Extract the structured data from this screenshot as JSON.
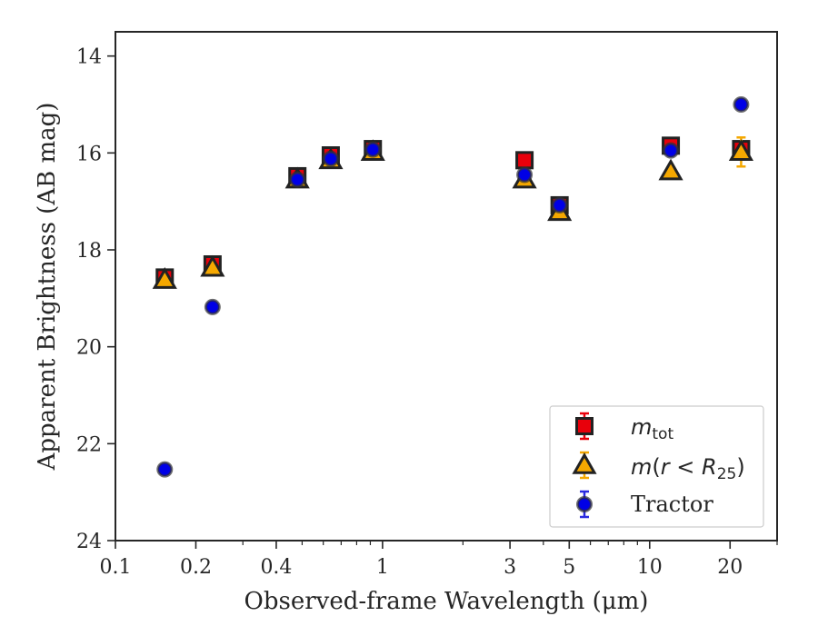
{
  "chart_data": {
    "type": "scatter",
    "xscale": "log",
    "xlim": [
      0.1,
      30
    ],
    "ylim": [
      24,
      13.5
    ],
    "y_inverted": true,
    "xlabel": "Observed-frame Wavelength (μm)",
    "ylabel": "Apparent Brightness (AB mag)",
    "xticks": [
      {
        "value": 0.1,
        "label": "0.1"
      },
      {
        "value": 0.2,
        "label": "0.2"
      },
      {
        "value": 0.4,
        "label": "0.4"
      },
      {
        "value": 1,
        "label": "1"
      },
      {
        "value": 3,
        "label": "3"
      },
      {
        "value": 5,
        "label": "5"
      },
      {
        "value": 10,
        "label": "10"
      },
      {
        "value": 20,
        "label": "20"
      }
    ],
    "yticks": [
      {
        "value": 14,
        "label": "14"
      },
      {
        "value": 16,
        "label": "16"
      },
      {
        "value": 18,
        "label": "18"
      },
      {
        "value": 20,
        "label": "20"
      },
      {
        "value": 22,
        "label": "22"
      },
      {
        "value": 24,
        "label": "24"
      }
    ],
    "legend_position": "lower-right",
    "series": [
      {
        "name": "m_tot",
        "marker": "square",
        "color": "#e8000b",
        "errcolor": "#e8000b",
        "points": [
          {
            "x": 0.153,
            "y": 18.57,
            "err": 0.12
          },
          {
            "x": 0.231,
            "y": 18.3,
            "err": 0.12
          },
          {
            "x": 0.48,
            "y": 16.48,
            "err": 0.1
          },
          {
            "x": 0.64,
            "y": 16.05,
            "err": 0.1
          },
          {
            "x": 0.92,
            "y": 15.92,
            "err": 0.05
          },
          {
            "x": 3.4,
            "y": 16.15,
            "err": 0.05
          },
          {
            "x": 4.6,
            "y": 17.08,
            "err": 0.05
          },
          {
            "x": 12.0,
            "y": 15.85,
            "err": 0.08
          },
          {
            "x": 22.0,
            "y": 15.92,
            "err": 0.15
          }
        ]
      },
      {
        "name": "m(r<R25)",
        "marker": "triangle",
        "color": "#f5a800",
        "errcolor": "#f5a800",
        "points": [
          {
            "x": 0.153,
            "y": 18.62,
            "err": 0.05
          },
          {
            "x": 0.231,
            "y": 18.37,
            "err": 0.05
          },
          {
            "x": 0.48,
            "y": 16.55,
            "err": 0.05
          },
          {
            "x": 0.64,
            "y": 16.15,
            "err": 0.05
          },
          {
            "x": 0.92,
            "y": 15.98,
            "err": 0.05
          },
          {
            "x": 3.4,
            "y": 16.55,
            "err": 0.05
          },
          {
            "x": 4.6,
            "y": 17.22,
            "err": 0.05
          },
          {
            "x": 12.0,
            "y": 16.38,
            "err": 0.05
          },
          {
            "x": 22.0,
            "y": 15.98,
            "err": 0.3
          }
        ]
      },
      {
        "name": "Tractor",
        "marker": "circle",
        "color": "#0000e6",
        "errcolor": "#2a2ae0",
        "points": [
          {
            "x": 0.153,
            "y": 22.53,
            "err": 0.06
          },
          {
            "x": 0.231,
            "y": 19.18,
            "err": 0.06
          },
          {
            "x": 0.48,
            "y": 16.55,
            "err": 0.05
          },
          {
            "x": 0.64,
            "y": 16.12,
            "err": 0.05
          },
          {
            "x": 0.92,
            "y": 15.93,
            "err": 0.05
          },
          {
            "x": 3.4,
            "y": 16.45,
            "err": 0.05
          },
          {
            "x": 4.6,
            "y": 17.08,
            "err": 0.05
          },
          {
            "x": 12.0,
            "y": 15.95,
            "err": 0.05
          },
          {
            "x": 22.0,
            "y": 15.0,
            "err": 0.05
          }
        ]
      }
    ],
    "legend": [
      {
        "marker": "square",
        "label": "m_tot"
      },
      {
        "marker": "triangle",
        "label": "m(r < R_25)"
      },
      {
        "marker": "circle",
        "label": "Tractor"
      }
    ]
  }
}
